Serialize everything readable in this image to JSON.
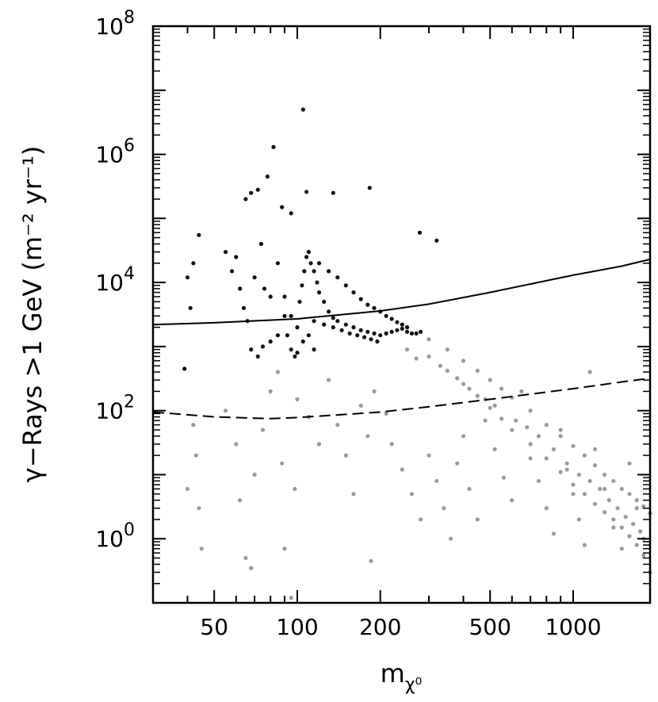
{
  "chart_data": {
    "type": "scatter",
    "title": "",
    "xlabel": "m",
    "xlabel_subscript": "χ⁰",
    "ylabel": "γ−Rays >1 GeV (m⁻² yr⁻¹)",
    "x_scale": "log",
    "y_scale": "log",
    "xlim": [
      30,
      1900
    ],
    "ylim": [
      0.1,
      100000000
    ],
    "x_tick_labels": [
      "50",
      "100",
      "200",
      "500",
      "1000"
    ],
    "x_ticks": [
      50,
      100,
      200,
      500,
      1000
    ],
    "y_ticks": [
      {
        "base": "10",
        "exp": "0",
        "value": 1
      },
      {
        "base": "10",
        "exp": "2",
        "value": 100
      },
      {
        "base": "10",
        "exp": "4",
        "value": 10000
      },
      {
        "base": "10",
        "exp": "6",
        "value": 1000000
      },
      {
        "base": "10",
        "exp": "8",
        "value": 100000000
      }
    ],
    "colors": {
      "dark_points": "#111111",
      "grey_points": "#999999",
      "lines": "#000000"
    },
    "series": [
      {
        "style": "points-dark",
        "points": [
          [
            105,
            5000000
          ],
          [
            82,
            1300000
          ],
          [
            78,
            450000
          ],
          [
            72,
            280000
          ],
          [
            68,
            250000
          ],
          [
            65,
            200000
          ],
          [
            88,
            150000
          ],
          [
            95,
            120000
          ],
          [
            108,
            260000
          ],
          [
            135,
            250000
          ],
          [
            183,
            300000
          ],
          [
            278,
            60000
          ],
          [
            320,
            45000
          ],
          [
            44,
            55000
          ],
          [
            42,
            20000
          ],
          [
            40,
            12000
          ],
          [
            41,
            4000
          ],
          [
            39,
            450
          ],
          [
            55,
            30000
          ],
          [
            58,
            15000
          ],
          [
            60,
            25000
          ],
          [
            62,
            8000
          ],
          [
            64,
            4000
          ],
          [
            66,
            2500
          ],
          [
            70,
            12000
          ],
          [
            74,
            40000
          ],
          [
            76,
            8000
          ],
          [
            80,
            6000
          ],
          [
            85,
            20000
          ],
          [
            90,
            3000
          ],
          [
            92,
            1500
          ],
          [
            95,
            900
          ],
          [
            98,
            700
          ],
          [
            100,
            2000
          ],
          [
            102,
            5000
          ],
          [
            104,
            9000
          ],
          [
            106,
            15000
          ],
          [
            108,
            25000
          ],
          [
            110,
            30000
          ],
          [
            112,
            20000
          ],
          [
            115,
            15000
          ],
          [
            118,
            10000
          ],
          [
            120,
            7000
          ],
          [
            125,
            5000
          ],
          [
            130,
            3500
          ],
          [
            135,
            2800
          ],
          [
            140,
            2500
          ],
          [
            150,
            2200
          ],
          [
            160,
            2000
          ],
          [
            170,
            1800
          ],
          [
            180,
            1700
          ],
          [
            190,
            1600
          ],
          [
            200,
            1500
          ],
          [
            210,
            1600
          ],
          [
            220,
            1700
          ],
          [
            230,
            1800
          ],
          [
            240,
            1900
          ],
          [
            250,
            1700
          ],
          [
            260,
            1600
          ],
          [
            270,
            1600
          ],
          [
            280,
            1700
          ],
          [
            115,
            2500
          ],
          [
            125,
            2200
          ],
          [
            135,
            2000
          ],
          [
            145,
            1800
          ],
          [
            155,
            1600
          ],
          [
            165,
            1500
          ],
          [
            175,
            1400
          ],
          [
            185,
            1300
          ],
          [
            195,
            1200
          ],
          [
            120,
            20000
          ],
          [
            130,
            15000
          ],
          [
            140,
            12000
          ],
          [
            150,
            9000
          ],
          [
            160,
            7000
          ],
          [
            170,
            5500
          ],
          [
            180,
            4500
          ],
          [
            190,
            4000
          ],
          [
            200,
            3500
          ],
          [
            210,
            3000
          ],
          [
            220,
            2700
          ],
          [
            230,
            2400
          ],
          [
            240,
            2200
          ],
          [
            250,
            2000
          ],
          [
            100,
            800
          ],
          [
            105,
            1200
          ],
          [
            110,
            1500
          ],
          [
            115,
            900
          ],
          [
            95,
            3000
          ],
          [
            90,
            6000
          ],
          [
            85,
            1500
          ],
          [
            80,
            1200
          ],
          [
            75,
            1000
          ],
          [
            72,
            700
          ],
          [
            68,
            900
          ]
        ]
      },
      {
        "style": "points-grey",
        "points": [
          [
            300,
            1300
          ],
          [
            350,
            900
          ],
          [
            400,
            600
          ],
          [
            450,
            420
          ],
          [
            500,
            300
          ],
          [
            550,
            220
          ],
          [
            600,
            160
          ],
          [
            700,
            100
          ],
          [
            800,
            60
          ],
          [
            900,
            40
          ],
          [
            1000,
            28
          ],
          [
            1100,
            20
          ],
          [
            1200,
            14
          ],
          [
            1300,
            10
          ],
          [
            1400,
            8
          ],
          [
            1500,
            6
          ],
          [
            1600,
            5
          ],
          [
            1700,
            4
          ],
          [
            1800,
            3.2
          ],
          [
            1900,
            2.5
          ],
          [
            300,
            700
          ],
          [
            350,
            420
          ],
          [
            400,
            260
          ],
          [
            450,
            170
          ],
          [
            500,
            110
          ],
          [
            550,
            75
          ],
          [
            600,
            50
          ],
          [
            700,
            30
          ],
          [
            800,
            18
          ],
          [
            900,
            11
          ],
          [
            1000,
            7
          ],
          [
            1100,
            5
          ],
          [
            1200,
            3.5
          ],
          [
            1300,
            2.6
          ],
          [
            1400,
            2
          ],
          [
            1500,
            1.5
          ],
          [
            1600,
            1.1
          ],
          [
            1700,
            0.8
          ],
          [
            1800,
            0.55
          ],
          [
            1900,
            0.3
          ],
          [
            250,
            900
          ],
          [
            270,
            650
          ],
          [
            330,
            500
          ],
          [
            380,
            320
          ],
          [
            420,
            220
          ],
          [
            480,
            150
          ],
          [
            520,
            120
          ],
          [
            620,
            70
          ],
          [
            680,
            55
          ],
          [
            750,
            40
          ],
          [
            850,
            25
          ],
          [
            950,
            15
          ],
          [
            1050,
            10
          ],
          [
            1150,
            8
          ],
          [
            1250,
            6
          ],
          [
            1350,
            4
          ],
          [
            1450,
            3
          ],
          [
            1550,
            2.2
          ],
          [
            1650,
            1.7
          ],
          [
            1750,
            1.3
          ],
          [
            40,
            6
          ],
          [
            42,
            60
          ],
          [
            43,
            20
          ],
          [
            44,
            3
          ],
          [
            45,
            0.7
          ],
          [
            55,
            100
          ],
          [
            60,
            30
          ],
          [
            62,
            4
          ],
          [
            65,
            0.5
          ],
          [
            68,
            0.35
          ],
          [
            70,
            10
          ],
          [
            75,
            50
          ],
          [
            80,
            200
          ],
          [
            85,
            400
          ],
          [
            88,
            15
          ],
          [
            90,
            0.7
          ],
          [
            95,
            0.12
          ],
          [
            98,
            6
          ],
          [
            100,
            150
          ],
          [
            110,
            80
          ],
          [
            120,
            30
          ],
          [
            130,
            300
          ],
          [
            140,
            60
          ],
          [
            150,
            20
          ],
          [
            160,
            5
          ],
          [
            170,
            120
          ],
          [
            180,
            40
          ],
          [
            185,
            0.45
          ],
          [
            190,
            200
          ],
          [
            210,
            90
          ],
          [
            220,
            30
          ],
          [
            240,
            12
          ],
          [
            260,
            5
          ],
          [
            280,
            2
          ],
          [
            300,
            20
          ],
          [
            320,
            8
          ],
          [
            340,
            3
          ],
          [
            360,
            1
          ],
          [
            380,
            15
          ],
          [
            400,
            40
          ],
          [
            420,
            6
          ],
          [
            450,
            2
          ],
          [
            480,
            70
          ],
          [
            520,
            25
          ],
          [
            560,
            9
          ],
          [
            600,
            4
          ],
          [
            650,
            200
          ],
          [
            700,
            18
          ],
          [
            750,
            8
          ],
          [
            800,
            3
          ],
          [
            850,
            1.2
          ],
          [
            900,
            50
          ],
          [
            950,
            12
          ],
          [
            1000,
            5
          ],
          [
            1050,
            2
          ],
          [
            1100,
            0.8
          ],
          [
            1150,
            400
          ],
          [
            1200,
            25
          ],
          [
            1300,
            6
          ],
          [
            1400,
            1.5
          ],
          [
            1500,
            0.7
          ],
          [
            1600,
            15
          ],
          [
            1700,
            3
          ],
          [
            1800,
            1
          ]
        ]
      },
      {
        "style": "solid-line",
        "points": [
          [
            30,
            2200
          ],
          [
            50,
            2350
          ],
          [
            100,
            2700
          ],
          [
            200,
            3600
          ],
          [
            300,
            4600
          ],
          [
            500,
            7000
          ],
          [
            1000,
            13000
          ],
          [
            1500,
            18000
          ],
          [
            1900,
            23000
          ]
        ]
      },
      {
        "style": "dashed-line",
        "points": [
          [
            30,
            95
          ],
          [
            50,
            80
          ],
          [
            80,
            75
          ],
          [
            100,
            78
          ],
          [
            200,
            95
          ],
          [
            300,
            115
          ],
          [
            500,
            150
          ],
          [
            1000,
            220
          ],
          [
            1500,
            280
          ],
          [
            1900,
            320
          ]
        ]
      }
    ]
  }
}
